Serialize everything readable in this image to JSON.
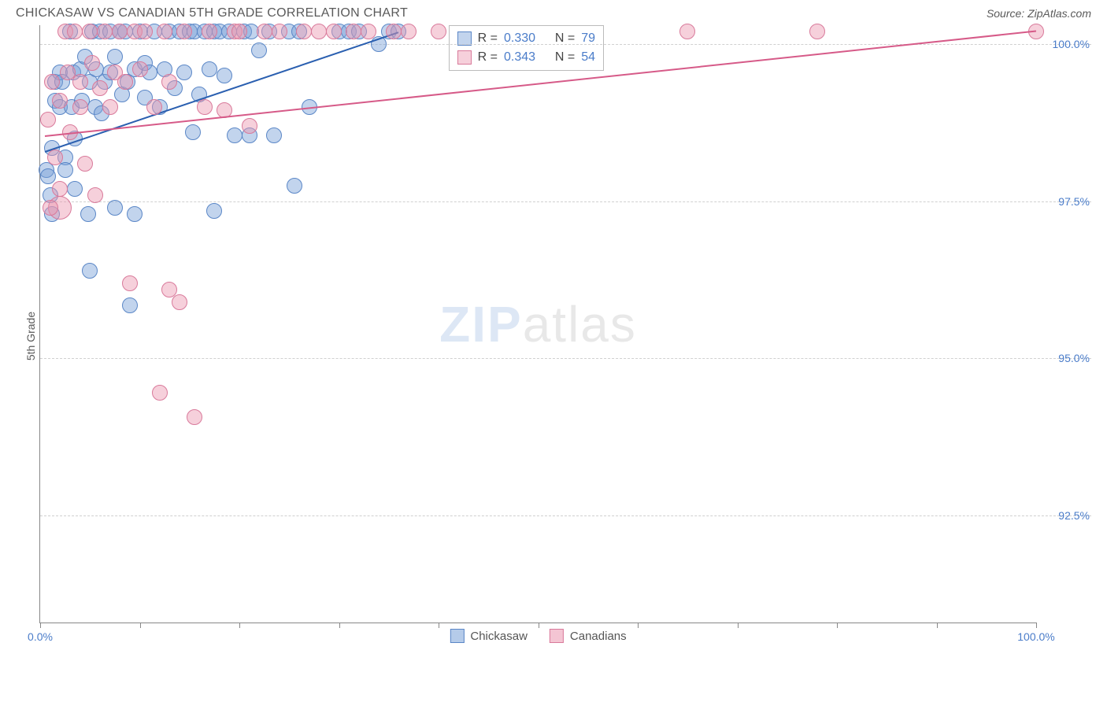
{
  "title": "CHICKASAW VS CANADIAN 5TH GRADE CORRELATION CHART",
  "source": "Source: ZipAtlas.com",
  "chart": {
    "type": "scatter",
    "ylabel": "5th Grade",
    "xlim": [
      0,
      100
    ],
    "ylim": [
      90.8,
      100.3
    ],
    "xticks": [
      0,
      10,
      20,
      30,
      40,
      50,
      60,
      70,
      80,
      90,
      100
    ],
    "xtick_labels": {
      "0": "0.0%",
      "100": "100.0%"
    },
    "yticks": [
      92.5,
      95.0,
      97.5,
      100.0
    ],
    "ytick_labels": [
      "92.5%",
      "95.0%",
      "97.5%",
      "100.0%"
    ],
    "grid_color": "#d0d0d0",
    "axis_color": "#888888",
    "background_color": "#ffffff",
    "tick_label_color": "#4a7cc9",
    "label_color": "#5a5a5a",
    "title_fontsize": 16,
    "label_fontsize": 14,
    "tick_fontsize": 14,
    "marker_radius": 10,
    "marker_radius_large": 15,
    "series": [
      {
        "name": "Chickasaw",
        "fill": "rgba(120,160,215,0.45)",
        "stroke": "#5b87c7",
        "trend_color": "#2a5fb0",
        "trend": {
          "x1": 0.5,
          "y1": 98.3,
          "x2": 36,
          "y2": 100.2
        },
        "R": "0.330",
        "N": "79",
        "points": [
          [
            0.6,
            98.0
          ],
          [
            0.8,
            97.9
          ],
          [
            1.0,
            97.6
          ],
          [
            1.2,
            98.35
          ],
          [
            1.2,
            97.3
          ],
          [
            1.5,
            99.4
          ],
          [
            1.5,
            99.1
          ],
          [
            2.0,
            99.55
          ],
          [
            2.0,
            99.0
          ],
          [
            2.2,
            99.4
          ],
          [
            2.5,
            98.2
          ],
          [
            2.5,
            98.0
          ],
          [
            3.0,
            100.2
          ],
          [
            3.2,
            99.0
          ],
          [
            3.3,
            99.55
          ],
          [
            3.5,
            98.5
          ],
          [
            3.5,
            97.7
          ],
          [
            4.0,
            99.6
          ],
          [
            4.2,
            99.1
          ],
          [
            4.5,
            99.8
          ],
          [
            4.8,
            97.3
          ],
          [
            5.0,
            99.4
          ],
          [
            5.0,
            96.4
          ],
          [
            5.2,
            100.2
          ],
          [
            5.5,
            99.0
          ],
          [
            5.6,
            99.6
          ],
          [
            6.0,
            100.2
          ],
          [
            6.2,
            98.9
          ],
          [
            6.5,
            99.4
          ],
          [
            7.0,
            100.2
          ],
          [
            7.0,
            99.55
          ],
          [
            7.5,
            99.8
          ],
          [
            7.5,
            97.4
          ],
          [
            8.0,
            100.2
          ],
          [
            8.2,
            99.2
          ],
          [
            8.5,
            100.2
          ],
          [
            8.8,
            99.4
          ],
          [
            9.0,
            95.84
          ],
          [
            9.5,
            99.6
          ],
          [
            9.5,
            97.3
          ],
          [
            10.0,
            100.2
          ],
          [
            10.5,
            99.7
          ],
          [
            10.5,
            99.15
          ],
          [
            11.0,
            99.55
          ],
          [
            11.5,
            100.2
          ],
          [
            12.0,
            99.0
          ],
          [
            12.5,
            99.6
          ],
          [
            13.0,
            100.2
          ],
          [
            13.5,
            99.3
          ],
          [
            14.0,
            100.2
          ],
          [
            14.5,
            99.55
          ],
          [
            15.0,
            100.2
          ],
          [
            15.3,
            98.6
          ],
          [
            15.5,
            100.2
          ],
          [
            16.0,
            99.2
          ],
          [
            16.5,
            100.2
          ],
          [
            17.0,
            99.6
          ],
          [
            17.5,
            100.2
          ],
          [
            17.5,
            97.35
          ],
          [
            18.0,
            100.2
          ],
          [
            18.5,
            99.5
          ],
          [
            19.0,
            100.2
          ],
          [
            19.5,
            98.55
          ],
          [
            20.5,
            100.2
          ],
          [
            21.0,
            98.55
          ],
          [
            21.2,
            100.2
          ],
          [
            22.0,
            99.9
          ],
          [
            23.0,
            100.2
          ],
          [
            23.5,
            98.55
          ],
          [
            25.0,
            100.2
          ],
          [
            25.5,
            97.75
          ],
          [
            26.0,
            100.2
          ],
          [
            27.0,
            99.0
          ],
          [
            30.0,
            100.2
          ],
          [
            31.0,
            100.2
          ],
          [
            32.0,
            100.2
          ],
          [
            34.0,
            100.0
          ],
          [
            35.0,
            100.2
          ],
          [
            36.0,
            100.2
          ]
        ]
      },
      {
        "name": "Canadians",
        "fill": "rgba(235,150,175,0.45)",
        "stroke": "#d97a9b",
        "trend_color": "#d65a88",
        "trend": {
          "x1": 0.5,
          "y1": 98.55,
          "x2": 100,
          "y2": 100.22
        },
        "R": "0.343",
        "N": "54",
        "points": [
          [
            0.8,
            98.8
          ],
          [
            1.0,
            97.4
          ],
          [
            1.2,
            99.4
          ],
          [
            1.5,
            98.2
          ],
          [
            2.0,
            99.1
          ],
          [
            2.0,
            97.7
          ],
          [
            2.5,
            100.2
          ],
          [
            2.8,
            99.55
          ],
          [
            3.0,
            98.6
          ],
          [
            3.5,
            100.2
          ],
          [
            4.0,
            99.4
          ],
          [
            4.0,
            99.0
          ],
          [
            4.5,
            98.1
          ],
          [
            5.0,
            100.2
          ],
          [
            5.2,
            99.7
          ],
          [
            5.5,
            97.6
          ],
          [
            6.0,
            99.3
          ],
          [
            6.5,
            100.2
          ],
          [
            7.0,
            99.0
          ],
          [
            7.5,
            99.55
          ],
          [
            8.0,
            100.2
          ],
          [
            8.5,
            99.4
          ],
          [
            9.0,
            96.2
          ],
          [
            9.5,
            100.2
          ],
          [
            10.0,
            99.6
          ],
          [
            10.5,
            100.2
          ],
          [
            11.5,
            99.0
          ],
          [
            12.0,
            94.45
          ],
          [
            12.5,
            100.2
          ],
          [
            13.0,
            99.4
          ],
          [
            13.0,
            96.1
          ],
          [
            14.0,
            95.9
          ],
          [
            14.5,
            100.2
          ],
          [
            15.5,
            94.07
          ],
          [
            16.5,
            99.0
          ],
          [
            17.0,
            100.2
          ],
          [
            18.5,
            98.95
          ],
          [
            19.5,
            100.2
          ],
          [
            20.0,
            100.2
          ],
          [
            21.0,
            98.7
          ],
          [
            22.5,
            100.2
          ],
          [
            24.0,
            100.2
          ],
          [
            26.5,
            100.2
          ],
          [
            28.0,
            100.2
          ],
          [
            29.5,
            100.2
          ],
          [
            31.5,
            100.2
          ],
          [
            33.0,
            100.2
          ],
          [
            35.5,
            100.2
          ],
          [
            37.0,
            100.2
          ],
          [
            40.0,
            100.2
          ],
          [
            65.0,
            100.2
          ],
          [
            78.0,
            100.2
          ],
          [
            100.0,
            100.2
          ]
        ],
        "large_points": [
          [
            2.0,
            97.4
          ]
        ]
      }
    ],
    "watermark": {
      "bold": "ZIP",
      "light": "atlas",
      "color_bold": "rgba(120,160,215,0.25)",
      "color_light": "rgba(150,150,150,0.22)"
    },
    "legend_bottom": [
      {
        "label": "Chickasaw",
        "fill": "rgba(120,160,215,0.55)",
        "stroke": "#5b87c7"
      },
      {
        "label": "Canadians",
        "fill": "rgba(235,150,175,0.55)",
        "stroke": "#d97a9b"
      }
    ]
  }
}
